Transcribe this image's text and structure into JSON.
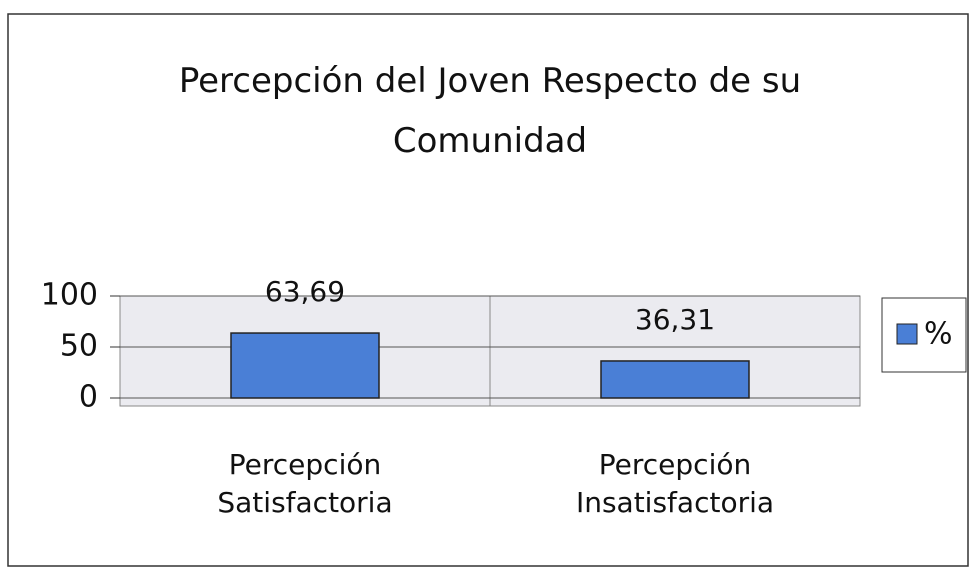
{
  "chart_data": {
    "type": "bar",
    "title": "Percepción del Joven Respecto de su Comunidad",
    "categories": [
      "Percepción Satisfactoria",
      "Percepción Insatisfactoria"
    ],
    "series": [
      {
        "name": "%",
        "color": "#4a7fd6",
        "values": [
          63.69,
          36.31
        ],
        "value_labels": [
          "63,69",
          "36,31"
        ]
      }
    ],
    "ylim": [
      0,
      100
    ],
    "yticks": [
      0,
      50,
      100
    ],
    "grid": true,
    "legend": "right"
  }
}
